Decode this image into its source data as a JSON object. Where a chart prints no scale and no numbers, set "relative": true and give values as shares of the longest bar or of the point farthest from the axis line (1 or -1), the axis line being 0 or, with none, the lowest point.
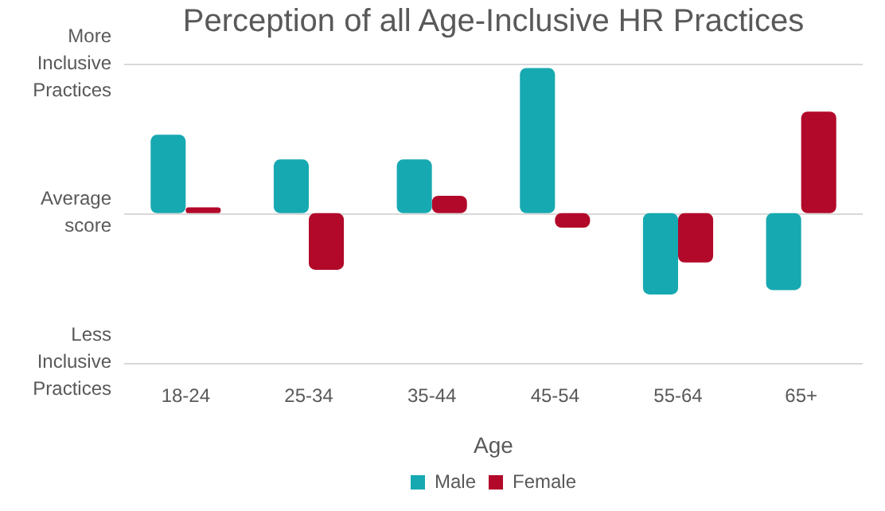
{
  "chart_data": {
    "type": "bar",
    "title": "Perception of all Age-Inclusive HR Practices",
    "xlabel": "Age",
    "categories": [
      "18-24",
      "25-34",
      "35-44",
      "45-54",
      "55-64",
      "65+"
    ],
    "series": [
      {
        "name": "Male",
        "color": "#17a9b1",
        "values": [
          0.54,
          0.37,
          0.37,
          1,
          -0.56,
          -0.53
        ]
      },
      {
        "name": "Female",
        "color": "#b2092a",
        "values": [
          0.04,
          -0.39,
          0.12,
          -0.1,
          -0.34,
          0.7
        ]
      }
    ],
    "relative": true,
    "annotations": [
      "More Inclusive Practices",
      "Average score",
      "Less Inclusive Practices"
    ],
    "legend": "bottom"
  }
}
